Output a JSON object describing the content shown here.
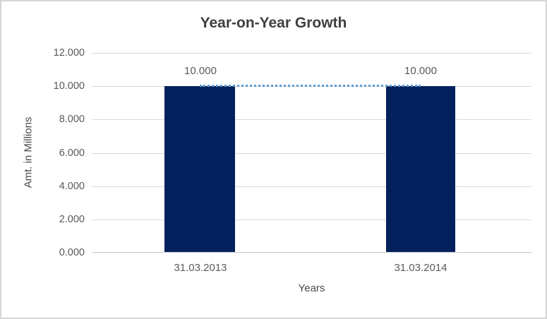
{
  "chart_data": {
    "type": "bar",
    "title": "Year-on-Year Growth",
    "categories": [
      "31.03.2013",
      "31.03.2014"
    ],
    "values": [
      10.0,
      10.0
    ],
    "value_labels": [
      "10.000",
      "10.000"
    ],
    "xlabel": "Years",
    "ylabel": "Amt. in Millions",
    "ylim": [
      0,
      12
    ],
    "ytick_step": 2,
    "ytick_labels_top_to_bottom": [
      "12.000",
      "10.000",
      "8.000",
      "6.000",
      "4.000",
      "2.000",
      "0.000"
    ],
    "number_format": "0.000",
    "grid": "horizontal-only",
    "legend": "none",
    "trendline": {
      "style": "dotted",
      "color": "#5b9bd5",
      "from_value": 10.0,
      "to_value": 10.0
    },
    "colors": {
      "bar": "#02215c",
      "gridline": "#d9d9d9",
      "axis_line": "#c6c6c6",
      "tick_text": "#595959",
      "title_text": "#3f3f3f",
      "chart_border": "#d6d6d6",
      "background": "#ffffff"
    }
  }
}
